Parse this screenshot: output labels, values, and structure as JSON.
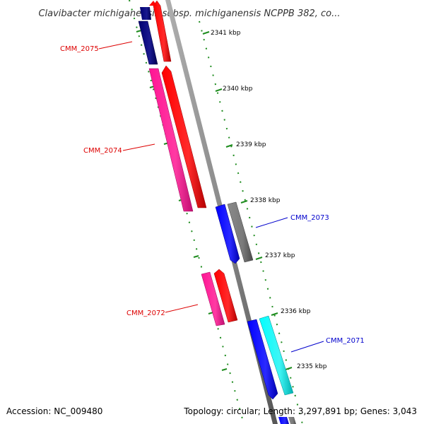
{
  "title": "Clavibacter michiganensis subsp. michiganensis NCPPB 382, co...",
  "ticks": [
    "2341 kbp",
    "2340 kbp",
    "2339 kbp",
    "2338 kbp",
    "2337 kbp",
    "2336 kbp",
    "2335 kbp"
  ],
  "genes": [
    {
      "name": "CMM_2075",
      "strand": "forward",
      "label_color": "#dd0000"
    },
    {
      "name": "CMM_2074",
      "strand": "forward",
      "label_color": "#dd0000"
    },
    {
      "name": "CMM_2073",
      "strand": "reverse",
      "label_color": "#0000cc"
    },
    {
      "name": "CMM_2072",
      "strand": "forward",
      "label_color": "#dd0000"
    },
    {
      "name": "CMM_2071",
      "strand": "reverse",
      "label_color": "#0000cc"
    }
  ],
  "footer": {
    "accession": "Accession: NC_009480",
    "summary": "Topology: circular; Length: 3,297,891 bp; Genes: 3,043"
  },
  "colors": {
    "backbone": "#8a8a8a",
    "tick": "#1e8c1e",
    "forward_strand_1": "#ff0000",
    "forward_strand_2": "#ff1493",
    "forward_strand_3": "#000080",
    "reverse_strand_1": "#0000ff",
    "reverse_strand_2": "#00e5e5",
    "reverse_strand_3": "#6e6e6e"
  }
}
